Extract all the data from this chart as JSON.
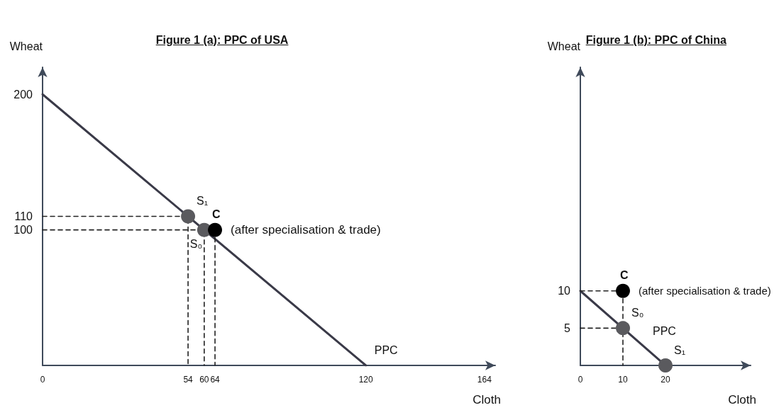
{
  "chart_data": [
    {
      "type": "line",
      "title": "Figure 1 (a): PPC of USA",
      "xlabel": "Cloth",
      "ylabel": "Wheat",
      "grid": false,
      "xlim": [
        0,
        168
      ],
      "ylim": [
        0,
        220
      ],
      "xticks": [
        0,
        54,
        60,
        64,
        120,
        164
      ],
      "yticks": [
        100,
        110,
        200
      ],
      "series": [
        {
          "type": "line",
          "color": "#3a3a48",
          "x": [
            0,
            120
          ],
          "values": [
            200,
            0
          ],
          "line_style": "solid",
          "marker": "none"
        },
        {
          "type": "line",
          "color": "#222222",
          "x": [
            0,
            54,
            54
          ],
          "values": [
            110,
            110,
            0
          ],
          "line_style": "dashed",
          "marker": "none"
        },
        {
          "type": "line",
          "color": "#222222",
          "x": [
            0,
            60,
            60
          ],
          "values": [
            100,
            100,
            0
          ],
          "line_style": "dashed",
          "marker": "none"
        },
        {
          "type": "line",
          "color": "#222222",
          "x": [
            64,
            64
          ],
          "values": [
            100,
            0
          ],
          "line_style": "dashed",
          "marker": "none"
        },
        {
          "type": "scatter",
          "color": "#5a5a5e",
          "x": [
            54,
            60
          ],
          "values": [
            110,
            100
          ],
          "marker": "circle"
        },
        {
          "type": "scatter",
          "color": "#000000",
          "x": [
            64
          ],
          "values": [
            100
          ],
          "marker": "circle"
        }
      ],
      "annotations": [
        {
          "text": "S₁",
          "x": 54,
          "y": 110
        },
        {
          "text": "S₀",
          "x": 60,
          "y": 100
        },
        {
          "text": "C",
          "x": 64,
          "y": 100
        },
        {
          "text": "(after specialisation & trade)",
          "x": 64,
          "y": 100
        },
        {
          "text": "PPC",
          "x": 120,
          "y": 0
        }
      ]
    },
    {
      "type": "line",
      "title": "Figure 1 (b): PPC of China",
      "xlabel": "Cloth",
      "ylabel": "Wheat",
      "grid": false,
      "xlim": [
        0,
        40
      ],
      "ylim": [
        0,
        40
      ],
      "xticks": [
        0,
        10,
        20
      ],
      "yticks": [
        5,
        10
      ],
      "series": [
        {
          "type": "line",
          "color": "#3a3a48",
          "x": [
            0,
            20
          ],
          "values": [
            10,
            0
          ],
          "line_style": "solid",
          "marker": "none"
        },
        {
          "type": "line",
          "color": "#222222",
          "x": [
            0,
            10
          ],
          "values": [
            10,
            10
          ],
          "line_style": "dashed",
          "marker": "none"
        },
        {
          "type": "line",
          "color": "#222222",
          "x": [
            0,
            10,
            10
          ],
          "values": [
            5,
            5,
            0
          ],
          "line_style": "dashed",
          "marker": "none"
        },
        {
          "type": "line",
          "color": "#222222",
          "x": [
            10,
            10
          ],
          "values": [
            10,
            5
          ],
          "line_style": "dashed",
          "marker": "none"
        },
        {
          "type": "scatter",
          "color": "#5a5a5e",
          "x": [
            10,
            20
          ],
          "values": [
            5,
            0
          ],
          "marker": "circle"
        },
        {
          "type": "scatter",
          "color": "#000000",
          "x": [
            10
          ],
          "values": [
            10
          ],
          "marker": "circle"
        }
      ],
      "annotations": [
        {
          "text": "S₀",
          "x": 10,
          "y": 5
        },
        {
          "text": "S₁",
          "x": 20,
          "y": 0
        },
        {
          "text": "C",
          "x": 10,
          "y": 10
        },
        {
          "text": "(after specialisation & trade)",
          "x": 10,
          "y": 10
        },
        {
          "text": "PPC",
          "x": 15,
          "y": 2.5
        }
      ]
    }
  ]
}
